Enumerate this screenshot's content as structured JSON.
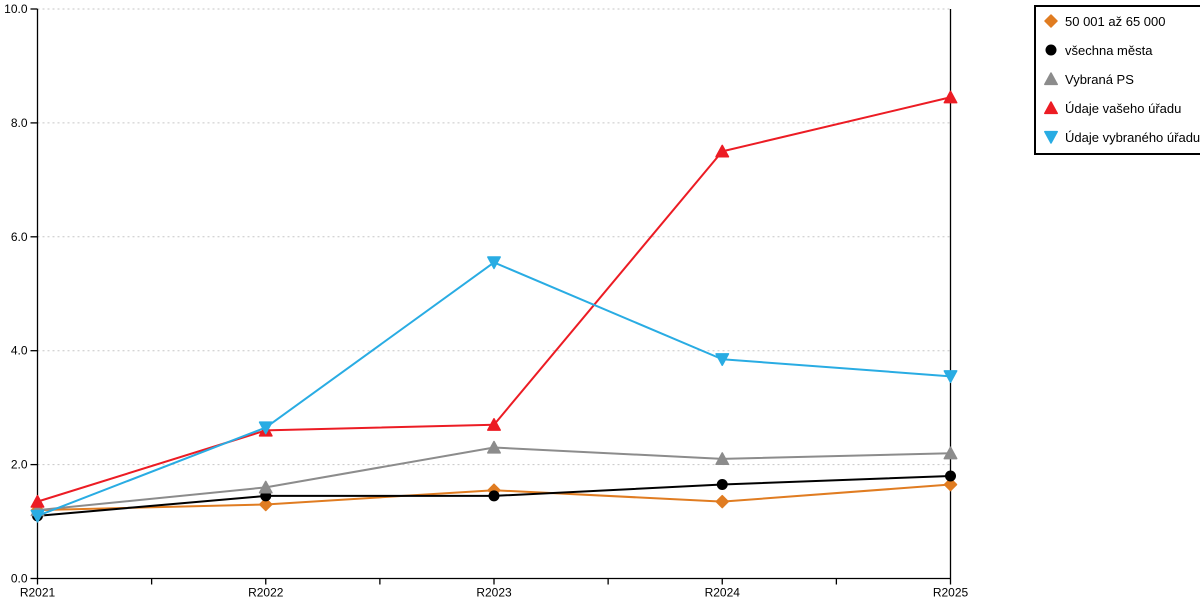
{
  "chart_data": {
    "type": "line",
    "title": "",
    "xlabel": "",
    "ylabel": "",
    "categories": [
      "R2021",
      "R2022",
      "R2023",
      "R2024",
      "R2025"
    ],
    "series": [
      {
        "name": "50 001 až 65 000",
        "marker": "diamond",
        "color": "#E07C21",
        "values": [
          1.2,
          1.3,
          1.55,
          1.35,
          1.65
        ]
      },
      {
        "name": "všechna města",
        "marker": "circle",
        "color": "#000000",
        "values": [
          1.1,
          1.45,
          1.45,
          1.65,
          1.8
        ]
      },
      {
        "name": "Vybraná PS",
        "marker": "triangle-up",
        "color": "#8C8C8C",
        "values": [
          1.2,
          1.6,
          2.3,
          2.1,
          2.2
        ]
      },
      {
        "name": "Údaje vašeho úřadu",
        "marker": "triangle-up",
        "color": "#EC1C24",
        "values": [
          1.35,
          2.6,
          2.7,
          7.5,
          8.45
        ]
      },
      {
        "name": "Údaje vybraného úřadu",
        "marker": "triangle-down",
        "color": "#29ACE3",
        "values": [
          1.1,
          2.65,
          5.55,
          3.85,
          3.55
        ]
      }
    ],
    "ylim": [
      0,
      10
    ],
    "yticks": [
      0,
      2,
      4,
      6,
      8,
      10
    ],
    "ytick_labels": [
      "0.0",
      "2.0",
      "4.0",
      "6.0",
      "8.0",
      "10.0"
    ],
    "grid": "horizontal dotted at major yticks",
    "legend_position": "top-right"
  },
  "colors": {
    "background": "#FFFFFF",
    "axis": "#000000",
    "gridline": "#C6C6C6",
    "legend_border": "#000000"
  }
}
